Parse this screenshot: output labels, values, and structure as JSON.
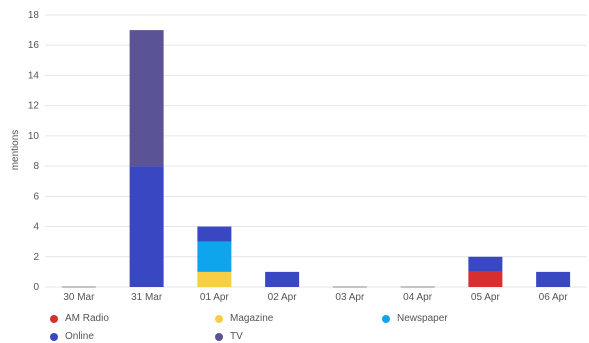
{
  "chart_data": {
    "type": "bar",
    "stacked": true,
    "categories": [
      "30 Mar",
      "31 Mar",
      "01 Apr",
      "02 Apr",
      "03 Apr",
      "04 Apr",
      "05 Apr",
      "06 Apr"
    ],
    "series": [
      {
        "name": "AM Radio",
        "color": "#d62f2f",
        "values": [
          0,
          0,
          0,
          0,
          0,
          0,
          1,
          0
        ]
      },
      {
        "name": "Magazine",
        "color": "#f7ce46",
        "values": [
          0,
          0,
          1,
          0,
          0,
          0,
          0,
          0
        ]
      },
      {
        "name": "Newspaper",
        "color": "#0ea5ec",
        "values": [
          0,
          0,
          2,
          0,
          0,
          0,
          0,
          0
        ]
      },
      {
        "name": "Online",
        "color": "#3a47c2",
        "values": [
          0,
          8,
          1,
          1,
          0,
          0,
          1,
          1
        ]
      },
      {
        "name": "TV",
        "color": "#5a5494",
        "values": [
          0,
          9,
          0,
          0,
          0,
          0,
          0,
          0
        ]
      }
    ],
    "ylabel": "mentions",
    "xlabel": "",
    "title": "",
    "ylim": [
      0,
      18
    ],
    "yticks": [
      0,
      2,
      4,
      6,
      8,
      10,
      12,
      14,
      16,
      18
    ],
    "grid": true,
    "legend_position": "bottom"
  }
}
